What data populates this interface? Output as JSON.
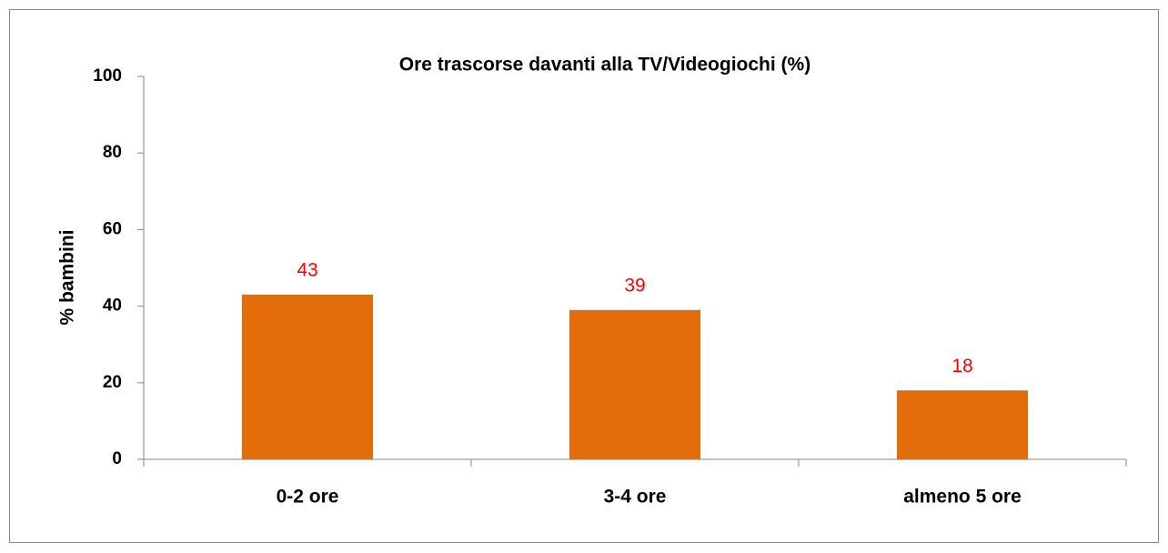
{
  "chart_data": {
    "type": "bar",
    "title": "Ore trascorse davanti alla TV/Videogiochi (%)",
    "y_label": "% bambini",
    "categories": [
      "0-2 ore",
      "3-4 ore",
      "almeno 5 ore"
    ],
    "values": [
      43,
      39,
      18
    ],
    "color": "#e36c0a",
    "value_label_color": "#ff0000",
    "ylim": [
      0,
      100
    ],
    "yticks": [
      0,
      20,
      40,
      60,
      80,
      100
    ],
    "grid": false
  }
}
